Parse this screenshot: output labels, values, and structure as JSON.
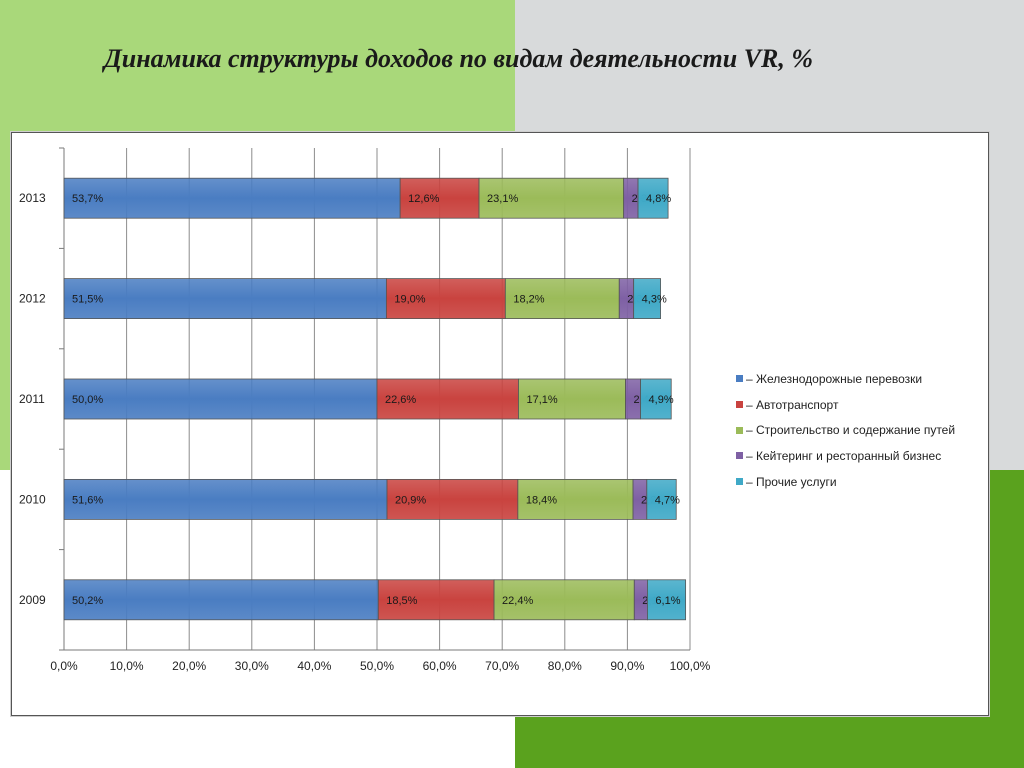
{
  "slide": {
    "title": "Динамика структуры доходов по видам деятельности VR, %"
  },
  "chart_data": {
    "type": "bar",
    "orientation": "horizontal",
    "stacked": true,
    "title": "",
    "categories": [
      "2013",
      "2012",
      "2011",
      "2010",
      "2009"
    ],
    "xlim": [
      0,
      100
    ],
    "x_ticks": [
      "0,0%",
      "10,0%",
      "20,0%",
      "30,0%",
      "40,0%",
      "50,0%",
      "60,0%",
      "70,0%",
      "80,0%",
      "90,0%",
      "100,0%"
    ],
    "grid": true,
    "legend_position": "right",
    "series": [
      {
        "name": "– Железнодорожные перевозки",
        "color": "#4a7dc2",
        "values": [
          53.7,
          51.5,
          50.0,
          51.6,
          50.2
        ],
        "labels": [
          "53,7%",
          "51,5%",
          "50,0%",
          "51,6%",
          "50,2%"
        ]
      },
      {
        "name": "– Автотранспорт",
        "color": "#c9433f",
        "values": [
          12.6,
          19.0,
          22.6,
          20.9,
          18.5
        ],
        "labels": [
          "12,6%",
          "19,0%",
          "22,6%",
          "20,9%",
          "18,5%"
        ]
      },
      {
        "name": "– Строительство и содержание путей",
        "color": "#9bbb59",
        "values": [
          23.1,
          18.2,
          17.1,
          18.4,
          22.4
        ],
        "labels": [
          "23,1%",
          "18,2%",
          "17,1%",
          "18,4%",
          "22,4%"
        ]
      },
      {
        "name": "– Кейтеринг и ресторанный бизнес",
        "color": "#7e60a4",
        "values": [
          2.3,
          2.3,
          2.4,
          2.2,
          2.1
        ],
        "labels": [
          "2,3",
          "2,3",
          "2,4",
          "2,2",
          "2,1"
        ]
      },
      {
        "name": "– Прочие услуги",
        "color": "#3fa9c7",
        "values": [
          4.8,
          4.3,
          4.9,
          4.7,
          6.1
        ],
        "labels": [
          "4,8%",
          "4,3%",
          "4,9%",
          "4,7%",
          "6,1%"
        ]
      }
    ]
  }
}
